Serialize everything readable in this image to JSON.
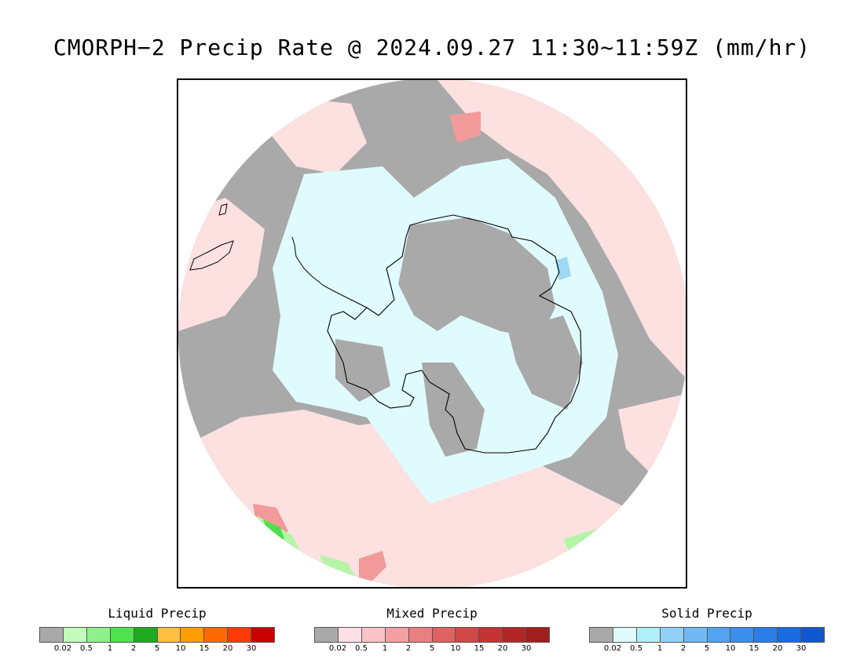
{
  "title": "CMORPH−2 Precip Rate @ 2024.09.27 11:30~11:59Z (mm/hr)",
  "map": {
    "projection": "south-polar-stereographic",
    "region": "Antarctica / Southern Ocean",
    "colors": {
      "no_precip": "#a9a9a9",
      "mixed_light": "#fde0e0",
      "solid_light": "#e0fbfd",
      "mixed_mod": "#f29a9a",
      "liquid_light": "#b4f5a8",
      "liquid_mod": "#4de04d",
      "solid_mod": "#9fd8f5"
    }
  },
  "legends": [
    {
      "title": "Liquid Precip",
      "colors": [
        "#a9a9a9",
        "#c3fbbd",
        "#8ff08c",
        "#4ee34e",
        "#1faa1f",
        "#ffbf40",
        "#ff9e00",
        "#ff6a00",
        "#ff3a0a",
        "#c80000"
      ],
      "ticks": [
        "0.02",
        "0.5",
        "1",
        "2",
        "5",
        "10",
        "15",
        "20",
        "30"
      ]
    },
    {
      "title": "Mixed Precip",
      "colors": [
        "#a9a9a9",
        "#fde0e6",
        "#fbc3c8",
        "#f2a0a4",
        "#e87f80",
        "#de6262",
        "#d04848",
        "#c33535",
        "#b32626",
        "#a01e1e"
      ],
      "ticks": [
        "0.02",
        "0.5",
        "1",
        "2",
        "5",
        "10",
        "15",
        "20",
        "30"
      ]
    },
    {
      "title": "Solid Precip",
      "colors": [
        "#a9a9a9",
        "#e0fbfd",
        "#b0eef8",
        "#93cff5",
        "#72b8f3",
        "#52a3f0",
        "#3b8eea",
        "#2a7ee5",
        "#1a6ae0",
        "#0f58d0"
      ],
      "ticks": [
        "0.02",
        "0.5",
        "1",
        "2",
        "5",
        "10",
        "15",
        "20",
        "30"
      ]
    }
  ]
}
